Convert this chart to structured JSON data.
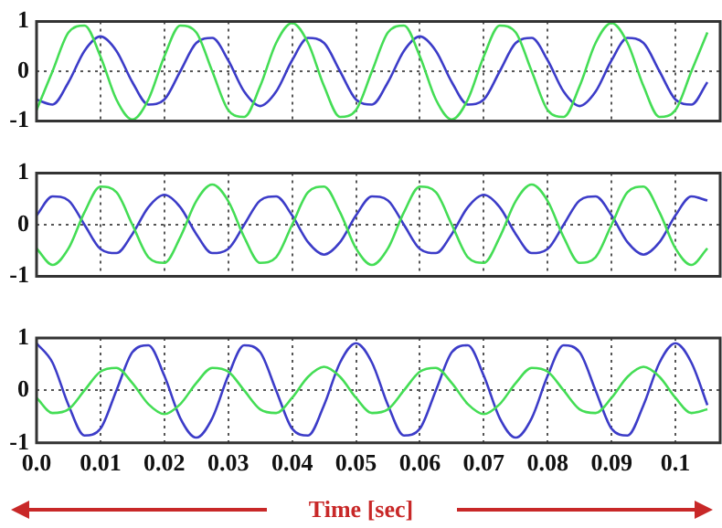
{
  "chart_data": [
    {
      "type": "line",
      "x": [
        0,
        0.0025,
        0.005,
        0.0075,
        0.01,
        0.0125,
        0.015,
        0.0175,
        0.02,
        0.0225,
        0.025,
        0.0275,
        0.03,
        0.0325,
        0.035,
        0.0375,
        0.04,
        0.0425,
        0.045,
        0.0475,
        0.05,
        0.0525,
        0.055,
        0.0575,
        0.06,
        0.0625,
        0.065,
        0.0675,
        0.07,
        0.0725,
        0.075,
        0.0775,
        0.08,
        0.0825,
        0.085,
        0.0875,
        0.09,
        0.0925,
        0.095,
        0.0975,
        0.1,
        0.1025,
        0.105
      ],
      "series": [
        {
          "color": "#44dd55",
          "values": [
            -0.78,
            0,
            0.78,
            0.92,
            0.3,
            -0.57,
            -0.97,
            -0.57,
            0.3,
            0.92,
            0.78,
            0,
            -0.78,
            -0.92,
            -0.3,
            0.57,
            0.97,
            0.57,
            -0.3,
            -0.92,
            -0.78,
            0,
            0.78,
            0.92,
            0.3,
            -0.57,
            -0.97,
            -0.57,
            0.3,
            0.92,
            0.78,
            0,
            -0.78,
            -0.92,
            -0.3,
            0.57,
            0.97,
            0.57,
            -0.3,
            -0.92,
            -0.78,
            0,
            0.78
          ]
        },
        {
          "color": "#3c3cc8",
          "values": [
            -0.57,
            -0.67,
            -0.22,
            0.41,
            0.7,
            0.41,
            -0.22,
            -0.67,
            -0.57,
            0,
            0.57,
            0.67,
            0.22,
            -0.41,
            -0.7,
            -0.41,
            0.22,
            0.67,
            0.57,
            0,
            -0.57,
            -0.67,
            -0.22,
            0.41,
            0.7,
            0.41,
            -0.22,
            -0.67,
            -0.57,
            0,
            0.57,
            0.67,
            0.22,
            -0.41,
            -0.7,
            -0.41,
            0.22,
            0.67,
            0.57,
            0,
            -0.57,
            -0.67,
            -0.22
          ]
        }
      ],
      "xlim": [
        0,
        0.107
      ],
      "xticks": [
        0.01,
        0.02,
        0.03,
        0.04,
        0.05,
        0.06,
        0.07,
        0.08,
        0.09,
        0.1
      ],
      "ylim": [
        -1,
        1
      ],
      "yticks": [
        -1,
        0,
        1
      ],
      "grid": true,
      "tick_labels": "y",
      "marker": "none"
    },
    {
      "type": "line",
      "x": [
        0,
        0.0025,
        0.005,
        0.0075,
        0.01,
        0.0125,
        0.015,
        0.0175,
        0.02,
        0.0225,
        0.025,
        0.0275,
        0.03,
        0.0325,
        0.035,
        0.0375,
        0.04,
        0.0425,
        0.045,
        0.0475,
        0.05,
        0.0525,
        0.055,
        0.0575,
        0.06,
        0.0625,
        0.065,
        0.0675,
        0.07,
        0.0725,
        0.075,
        0.0775,
        0.08,
        0.0825,
        0.085,
        0.0875,
        0.09,
        0.0925,
        0.095,
        0.0975,
        0.1,
        0.1025,
        0.105
      ],
      "series": [
        {
          "color": "#44dd55",
          "values": [
            -0.46,
            -0.78,
            -0.46,
            0.24,
            0.74,
            0.63,
            0,
            -0.63,
            -0.74,
            -0.24,
            0.46,
            0.78,
            0.46,
            -0.24,
            -0.74,
            -0.63,
            0,
            0.63,
            0.74,
            0.24,
            -0.46,
            -0.78,
            -0.46,
            0.24,
            0.74,
            0.63,
            0,
            -0.63,
            -0.74,
            -0.24,
            0.46,
            0.78,
            0.46,
            -0.24,
            -0.74,
            -0.63,
            0,
            0.63,
            0.74,
            0.24,
            -0.46,
            -0.78,
            -0.46
          ]
        },
        {
          "color": "#3c3cc8",
          "values": [
            0.18,
            0.55,
            0.47,
            0,
            -0.47,
            -0.55,
            -0.18,
            0.34,
            0.58,
            0.34,
            -0.18,
            -0.55,
            -0.47,
            0,
            0.47,
            0.55,
            0.18,
            -0.34,
            -0.58,
            -0.34,
            0.18,
            0.55,
            0.47,
            0,
            -0.47,
            -0.55,
            -0.18,
            0.34,
            0.58,
            0.34,
            -0.18,
            -0.55,
            -0.47,
            0,
            0.47,
            0.55,
            0.18,
            -0.34,
            -0.58,
            -0.34,
            0.18,
            0.55,
            0.47
          ]
        }
      ],
      "xlim": [
        0,
        0.107
      ],
      "xticks": [
        0.01,
        0.02,
        0.03,
        0.04,
        0.05,
        0.06,
        0.07,
        0.08,
        0.09,
        0.1
      ],
      "ylim": [
        -1,
        1
      ],
      "yticks": [
        -1,
        0,
        1
      ],
      "grid": true,
      "tick_labels": "y",
      "marker": "none"
    },
    {
      "type": "line",
      "xlabel": "Time [sec]",
      "x": [
        0,
        0.0025,
        0.005,
        0.0075,
        0.01,
        0.0125,
        0.015,
        0.0175,
        0.02,
        0.0225,
        0.025,
        0.0275,
        0.03,
        0.0325,
        0.035,
        0.0375,
        0.04,
        0.0425,
        0.045,
        0.0475,
        0.05,
        0.0525,
        0.055,
        0.0575,
        0.06,
        0.0625,
        0.065,
        0.0675,
        0.07,
        0.0725,
        0.075,
        0.0775,
        0.08,
        0.0825,
        0.085,
        0.0875,
        0.09,
        0.0925,
        0.095,
        0.0975,
        0.1,
        0.1025,
        0.105
      ],
      "series": [
        {
          "color": "#44dd55",
          "values": [
            -0.14,
            -0.43,
            -0.36,
            0,
            0.36,
            0.43,
            0.14,
            -0.26,
            -0.45,
            -0.26,
            0.14,
            0.43,
            0.36,
            0,
            -0.36,
            -0.43,
            -0.14,
            0.26,
            0.45,
            0.26,
            -0.14,
            -0.43,
            -0.36,
            0,
            0.36,
            0.43,
            0.14,
            -0.26,
            -0.45,
            -0.26,
            0.14,
            0.43,
            0.36,
            0,
            -0.36,
            -0.43,
            -0.14,
            0.26,
            0.45,
            0.26,
            -0.14,
            -0.43,
            -0.36
          ]
        },
        {
          "color": "#3c3cc8",
          "values": [
            0.9,
            0.53,
            -0.28,
            -0.86,
            -0.73,
            0,
            0.73,
            0.86,
            0.28,
            -0.53,
            -0.9,
            -0.53,
            0.28,
            0.86,
            0.73,
            0,
            -0.73,
            -0.86,
            -0.28,
            0.53,
            0.9,
            0.53,
            -0.28,
            -0.86,
            -0.73,
            0,
            0.73,
            0.86,
            0.28,
            -0.53,
            -0.9,
            -0.53,
            0.28,
            0.86,
            0.73,
            0,
            -0.73,
            -0.86,
            -0.28,
            0.53,
            0.9,
            0.53,
            -0.28
          ]
        }
      ],
      "xlim": [
        0,
        0.107
      ],
      "xticks": [
        {
          "value": 0,
          "label": "0.0"
        },
        0.01,
        0.02,
        0.03,
        0.04,
        0.05,
        0.06,
        0.07,
        0.08,
        0.09,
        0.1
      ],
      "ylim": [
        -1,
        1
      ],
      "yticks": [
        -1,
        0,
        1
      ],
      "grid": true,
      "marker": "none"
    }
  ]
}
